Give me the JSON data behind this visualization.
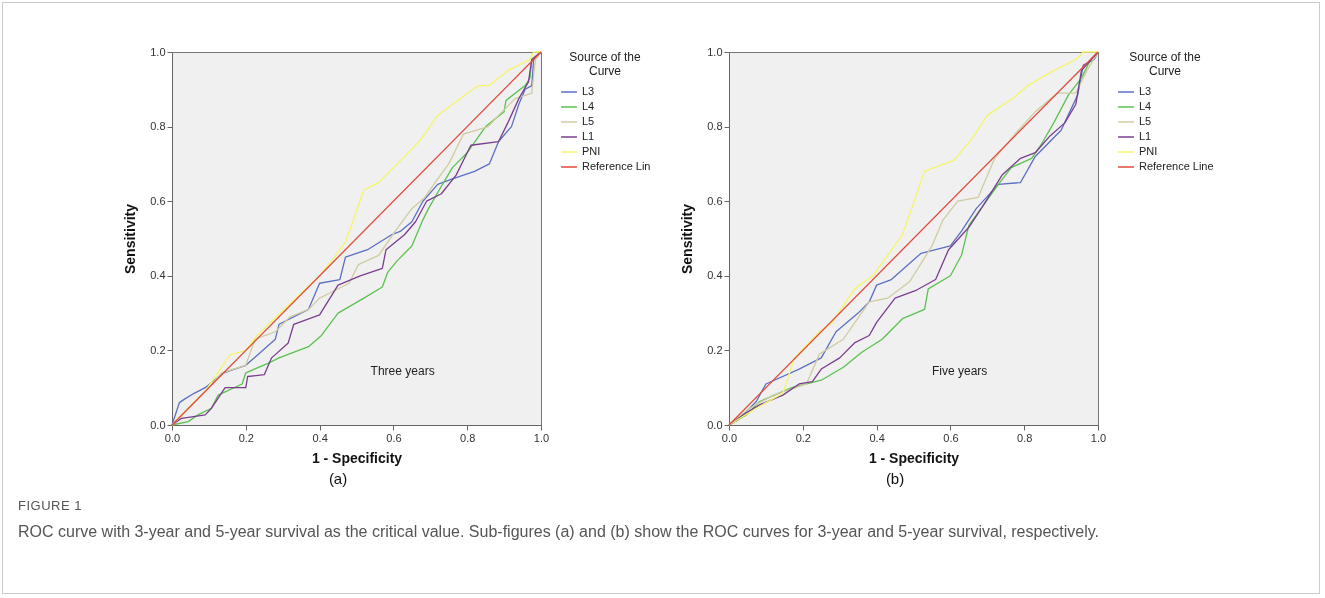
{
  "chart_data": [
    {
      "type": "line",
      "xlabel": "1 - Specificity",
      "ylabel": "Sensitivity",
      "legend_title": "Source of the Curve",
      "legend": "right",
      "grid": false,
      "xlim": [
        0,
        1
      ],
      "ylim": [
        0,
        1
      ],
      "xticks": [
        {
          "value": 0,
          "label": "0.0"
        },
        {
          "value": 0.2,
          "label": "0.2"
        },
        {
          "value": 0.4,
          "label": "0.4"
        },
        {
          "value": 0.6,
          "label": "0.6"
        },
        {
          "value": 0.8,
          "label": "0.8"
        },
        {
          "value": 1,
          "label": "1.0"
        }
      ],
      "yticks": [
        {
          "value": 0,
          "label": "0.0"
        },
        {
          "value": 0.2,
          "label": "0.2"
        },
        {
          "value": 0.4,
          "label": "0.4"
        },
        {
          "value": 0.6,
          "label": "0.6"
        },
        {
          "value": 0.8,
          "label": "0.8"
        },
        {
          "value": 1,
          "label": "1.0"
        }
      ],
      "annotations": [
        "Three years",
        "(a)",
        "FIGURE 1",
        "ROC curve with 3-year and 5-year survival as the critical value. Sub-figures (a) and (b) show the ROC curves for 3-year and 5-year survival, respectively."
      ],
      "series": [
        {
          "name": "L3",
          "color": "#5b6fc4",
          "x": [
            0,
            0.02,
            0.035,
            0.06,
            0.09,
            0.14,
            0.2,
            0.28,
            0.29,
            0.37,
            0.4,
            0.455,
            0.47,
            0.53,
            0.595,
            0.62,
            0.65,
            0.68,
            0.72,
            0.76,
            0.82,
            0.86,
            0.885,
            0.92,
            0.94,
            0.957,
            0.975,
            0.98,
            1
          ],
          "values": [
            0,
            0.06,
            0.07,
            0.085,
            0.1,
            0.14,
            0.16,
            0.23,
            0.27,
            0.31,
            0.38,
            0.39,
            0.45,
            0.47,
            0.51,
            0.52,
            0.545,
            0.6,
            0.645,
            0.66,
            0.68,
            0.7,
            0.76,
            0.8,
            0.86,
            0.9,
            0.91,
            0.98,
            1
          ]
        },
        {
          "name": "L4",
          "color": "#5ac24e",
          "x": [
            0,
            0.044,
            0.07,
            0.107,
            0.125,
            0.19,
            0.2,
            0.26,
            0.29,
            0.37,
            0.405,
            0.45,
            0.52,
            0.57,
            0.585,
            0.61,
            0.65,
            0.68,
            0.695,
            0.73,
            0.76,
            0.8,
            0.85,
            0.9,
            0.905,
            0.957,
            0.97,
            0.975,
            1
          ],
          "values": [
            0,
            0.009,
            0.027,
            0.045,
            0.08,
            0.11,
            0.14,
            0.165,
            0.18,
            0.21,
            0.24,
            0.3,
            0.34,
            0.37,
            0.41,
            0.44,
            0.48,
            0.55,
            0.58,
            0.64,
            0.69,
            0.73,
            0.8,
            0.84,
            0.87,
            0.91,
            0.93,
            0.98,
            1
          ]
        },
        {
          "name": "L5",
          "color": "#cfcca0",
          "x": [
            0,
            0.035,
            0.09,
            0.135,
            0.2,
            0.225,
            0.28,
            0.32,
            0.37,
            0.4,
            0.44,
            0.48,
            0.505,
            0.56,
            0.605,
            0.65,
            0.685,
            0.72,
            0.75,
            0.79,
            0.857,
            0.885,
            0.93,
            0.975,
            0.985,
            1
          ],
          "values": [
            0,
            0.036,
            0.09,
            0.14,
            0.16,
            0.23,
            0.25,
            0.29,
            0.31,
            0.34,
            0.36,
            0.38,
            0.43,
            0.455,
            0.52,
            0.58,
            0.61,
            0.66,
            0.7,
            0.78,
            0.8,
            0.83,
            0.875,
            0.89,
            0.98,
            1
          ]
        },
        {
          "name": "L1",
          "color": "#7a3d8f",
          "x": [
            0,
            0.026,
            0.09,
            0.107,
            0.144,
            0.2,
            0.205,
            0.25,
            0.27,
            0.315,
            0.33,
            0.4,
            0.45,
            0.51,
            0.57,
            0.58,
            0.63,
            0.66,
            0.69,
            0.73,
            0.77,
            0.81,
            0.885,
            0.91,
            0.94,
            0.966,
            0.975,
            1
          ],
          "values": [
            0,
            0.018,
            0.027,
            0.045,
            0.1,
            0.1,
            0.13,
            0.135,
            0.18,
            0.22,
            0.27,
            0.295,
            0.375,
            0.4,
            0.42,
            0.47,
            0.51,
            0.545,
            0.6,
            0.62,
            0.67,
            0.75,
            0.76,
            0.81,
            0.875,
            0.92,
            0.98,
            1
          ]
        },
        {
          "name": "PNI",
          "color": "#f5f56a",
          "x": [
            0,
            0.035,
            0.09,
            0.157,
            0.2,
            0.23,
            0.4,
            0.44,
            0.47,
            0.52,
            0.56,
            0.61,
            0.67,
            0.72,
            0.76,
            0.83,
            0.86,
            0.91,
            0.97,
            0.98,
            1
          ],
          "values": [
            0,
            0.036,
            0.09,
            0.188,
            0.2,
            0.24,
            0.4,
            0.45,
            0.49,
            0.63,
            0.65,
            0.7,
            0.76,
            0.83,
            0.86,
            0.91,
            0.91,
            0.95,
            0.98,
            1,
            1
          ]
        },
        {
          "name": "Reference Lin",
          "color": "#e04a3a",
          "x": [
            0,
            1
          ],
          "values": [
            0,
            1
          ]
        }
      ]
    },
    {
      "type": "line",
      "xlabel": "1 - Specificity",
      "ylabel": "Sensitivity",
      "legend_title": "Source of the Curve",
      "legend": "right",
      "grid": false,
      "xlim": [
        0,
        1
      ],
      "ylim": [
        0,
        1
      ],
      "xticks": [
        {
          "value": 0,
          "label": "0.0"
        },
        {
          "value": 0.2,
          "label": "0.2"
        },
        {
          "value": 0.4,
          "label": "0.4"
        },
        {
          "value": 0.6,
          "label": "0.6"
        },
        {
          "value": 0.8,
          "label": "0.8"
        },
        {
          "value": 1,
          "label": "1.0"
        }
      ],
      "yticks": [
        {
          "value": 0,
          "label": "0.0"
        },
        {
          "value": 0.2,
          "label": "0.2"
        },
        {
          "value": 0.4,
          "label": "0.4"
        },
        {
          "value": 0.6,
          "label": "0.6"
        },
        {
          "value": 0.8,
          "label": "0.8"
        },
        {
          "value": 1,
          "label": "1.0"
        }
      ],
      "annotations": [
        "Five years",
        "(b)"
      ],
      "series": [
        {
          "name": "L3",
          "color": "#5b6fc4",
          "x": [
            0,
            0.024,
            0.074,
            0.1,
            0.19,
            0.25,
            0.29,
            0.35,
            0.38,
            0.4,
            0.44,
            0.52,
            0.6,
            0.63,
            0.67,
            0.73,
            0.79,
            0.83,
            0.87,
            0.9,
            0.945,
            0.96,
            0.99,
            1
          ],
          "values": [
            0,
            0.013,
            0.063,
            0.11,
            0.15,
            0.18,
            0.25,
            0.3,
            0.33,
            0.375,
            0.39,
            0.46,
            0.48,
            0.52,
            0.58,
            0.645,
            0.65,
            0.72,
            0.76,
            0.79,
            0.885,
            0.965,
            0.98,
            1
          ]
        },
        {
          "name": "L4",
          "color": "#5ac24e",
          "x": [
            0,
            0.047,
            0.083,
            0.17,
            0.25,
            0.31,
            0.36,
            0.415,
            0.47,
            0.53,
            0.54,
            0.6,
            0.63,
            0.65,
            0.69,
            0.73,
            0.765,
            0.82,
            0.845,
            0.88,
            0.92,
            0.955,
            0.98,
            1
          ],
          "values": [
            0,
            0.027,
            0.063,
            0.1,
            0.12,
            0.155,
            0.195,
            0.23,
            0.285,
            0.31,
            0.365,
            0.4,
            0.455,
            0.535,
            0.59,
            0.645,
            0.69,
            0.715,
            0.75,
            0.81,
            0.885,
            0.93,
            0.98,
            1
          ]
        },
        {
          "name": "L5",
          "color": "#cfcca0",
          "x": [
            0,
            0.056,
            0.12,
            0.21,
            0.245,
            0.31,
            0.38,
            0.43,
            0.49,
            0.55,
            0.58,
            0.62,
            0.675,
            0.72,
            0.775,
            0.83,
            0.89,
            0.94,
            0.97,
            1
          ],
          "values": [
            0,
            0.045,
            0.08,
            0.11,
            0.19,
            0.23,
            0.33,
            0.34,
            0.385,
            0.48,
            0.55,
            0.6,
            0.61,
            0.715,
            0.78,
            0.84,
            0.89,
            0.89,
            0.95,
            1
          ]
        },
        {
          "name": "L1",
          "color": "#7a3d8f",
          "x": [
            0,
            0.038,
            0.083,
            0.146,
            0.19,
            0.226,
            0.25,
            0.3,
            0.34,
            0.38,
            0.4,
            0.45,
            0.505,
            0.56,
            0.595,
            0.65,
            0.69,
            0.74,
            0.79,
            0.83,
            0.87,
            0.91,
            0.94,
            0.955,
            1
          ],
          "values": [
            0,
            0.027,
            0.054,
            0.08,
            0.11,
            0.116,
            0.15,
            0.18,
            0.22,
            0.24,
            0.275,
            0.34,
            0.36,
            0.39,
            0.47,
            0.53,
            0.59,
            0.67,
            0.715,
            0.73,
            0.775,
            0.81,
            0.86,
            0.95,
            1
          ]
        },
        {
          "name": "PNI",
          "color": "#f5f56a",
          "x": [
            0,
            0.074,
            0.146,
            0.177,
            0.245,
            0.28,
            0.34,
            0.39,
            0.47,
            0.53,
            0.61,
            0.66,
            0.7,
            0.775,
            0.81,
            0.88,
            0.94,
            0.96,
            1
          ],
          "values": [
            0,
            0.045,
            0.085,
            0.18,
            0.25,
            0.275,
            0.365,
            0.4,
            0.51,
            0.68,
            0.71,
            0.77,
            0.83,
            0.88,
            0.91,
            0.95,
            0.98,
            1,
            1
          ]
        },
        {
          "name": "Reference Line",
          "color": "#e04a3a",
          "x": [
            0,
            1
          ],
          "values": [
            0,
            1
          ]
        }
      ]
    }
  ]
}
